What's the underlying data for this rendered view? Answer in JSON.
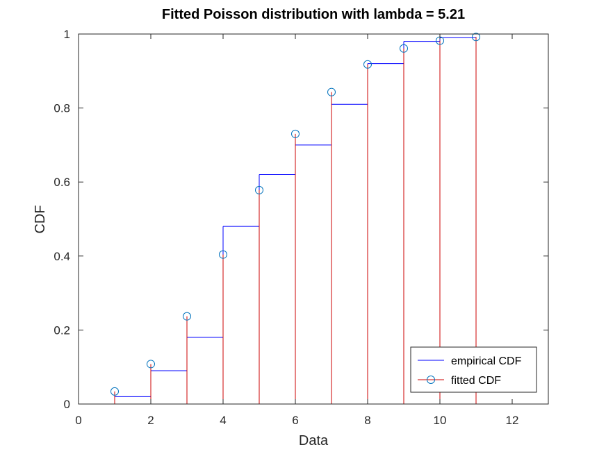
{
  "chart_data": {
    "type": "line",
    "title": "Fitted Poisson distribution with lambda = 5.21",
    "xlabel": "Data",
    "ylabel": "CDF",
    "xlim": [
      0,
      13
    ],
    "ylim": [
      0,
      1
    ],
    "xticks": [
      0,
      2,
      4,
      6,
      8,
      10,
      12
    ],
    "yticks": [
      0,
      0.2,
      0.4,
      0.6,
      0.8,
      1
    ],
    "grid": false,
    "legend_position": "bottom-right",
    "series": [
      {
        "name": "empirical CDF",
        "style": "stairs",
        "color": "#0000ff",
        "x": [
          1,
          2,
          3,
          4,
          5,
          6,
          7,
          8,
          9,
          10,
          11
        ],
        "values": [
          0.02,
          0.09,
          0.18,
          0.48,
          0.62,
          0.7,
          0.81,
          0.92,
          0.98,
          0.99,
          0.99
        ]
      },
      {
        "name": "fitted CDF",
        "style": "stem",
        "color": "#cc0000",
        "marker_color": "#0072bd",
        "x": [
          1,
          2,
          3,
          4,
          5,
          6,
          7,
          8,
          9,
          10,
          11
        ],
        "values": [
          0.034,
          0.108,
          0.237,
          0.404,
          0.578,
          0.73,
          0.843,
          0.918,
          0.961,
          0.982,
          0.992
        ]
      }
    ]
  }
}
